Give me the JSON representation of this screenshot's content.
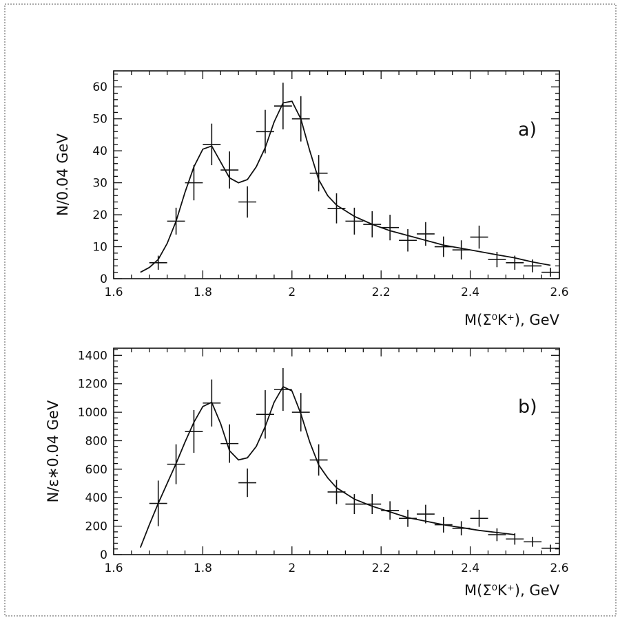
{
  "chart_data": [
    {
      "type": "scatter",
      "panel_label": "a)",
      "xlabel": "M(Σ⁰K⁺),  GeV",
      "ylabel": "N/0.04 GeV",
      "xlim": [
        1.6,
        2.6
      ],
      "ylim": [
        0,
        65
      ],
      "x_ticks": [
        1.6,
        1.8,
        2.0,
        2.2,
        2.4,
        2.6
      ],
      "x_tick_labels": [
        "1.6",
        "1.8",
        "2",
        "2.2",
        "2.4",
        "2.6"
      ],
      "y_ticks": [
        0,
        10,
        20,
        30,
        40,
        50,
        60
      ],
      "y_tick_labels": [
        "0",
        "10",
        "20",
        "30",
        "40",
        "50",
        "60"
      ],
      "series": [
        {
          "kind": "errorbar",
          "x": [
            1.7,
            1.74,
            1.78,
            1.82,
            1.86,
            1.9,
            1.94,
            1.98,
            2.02,
            2.06,
            2.1,
            2.14,
            2.18,
            2.22,
            2.26,
            2.3,
            2.34,
            2.38,
            2.42,
            2.46,
            2.5,
            2.54,
            2.58
          ],
          "y": [
            5,
            18,
            30,
            42,
            34,
            24,
            46,
            54,
            50,
            33,
            22,
            18,
            17,
            16,
            12,
            14,
            10,
            9,
            13,
            6,
            5,
            4,
            2
          ],
          "yerr": [
            2.2,
            4.2,
            5.5,
            6.5,
            5.8,
            4.9,
            6.8,
            7.3,
            7.1,
            5.7,
            4.7,
            4.2,
            4.1,
            4.0,
            3.5,
            3.7,
            3.2,
            3.0,
            3.6,
            2.4,
            2.2,
            2.0,
            1.4
          ],
          "xerr": 0.02
        },
        {
          "kind": "line",
          "x": [
            1.66,
            1.68,
            1.7,
            1.72,
            1.74,
            1.76,
            1.78,
            1.8,
            1.82,
            1.84,
            1.86,
            1.88,
            1.9,
            1.92,
            1.94,
            1.96,
            1.98,
            2.0,
            2.02,
            2.04,
            2.06,
            2.08,
            2.1,
            2.14,
            2.18,
            2.22,
            2.26,
            2.3,
            2.34,
            2.38,
            2.42,
            2.46,
            2.5,
            2.54,
            2.58
          ],
          "y": [
            2,
            3.5,
            6,
            11,
            18,
            27,
            35,
            40.5,
            41.5,
            36.5,
            31.5,
            30,
            31,
            35,
            41,
            49,
            55,
            55.5,
            50,
            40,
            31,
            26,
            23,
            19.5,
            17,
            15,
            13.5,
            12,
            10.5,
            9.5,
            8.5,
            7.5,
            6.5,
            5.2,
            4.2
          ]
        }
      ]
    },
    {
      "type": "scatter",
      "panel_label": "b)",
      "xlabel": "M(Σ⁰K⁺),  GeV",
      "ylabel": "N/ε∗0.04 GeV",
      "xlim": [
        1.6,
        2.6
      ],
      "ylim": [
        0,
        1450
      ],
      "x_ticks": [
        1.6,
        1.8,
        2.0,
        2.2,
        2.4,
        2.6
      ],
      "x_tick_labels": [
        "1.6",
        "1.8",
        "2",
        "2.2",
        "2.4",
        "2.6"
      ],
      "y_ticks": [
        0,
        200,
        400,
        600,
        800,
        1000,
        1200,
        1400
      ],
      "y_tick_labels": [
        "0",
        "200",
        "400",
        "600",
        "800",
        "1000",
        "1200",
        "1400"
      ],
      "series": [
        {
          "kind": "errorbar",
          "x": [
            1.7,
            1.74,
            1.78,
            1.82,
            1.86,
            1.9,
            1.94,
            1.98,
            2.02,
            2.06,
            2.1,
            2.14,
            2.18,
            2.22,
            2.26,
            2.3,
            2.34,
            2.38,
            2.42,
            2.46,
            2.5,
            2.54,
            2.58
          ],
          "y": [
            360,
            635,
            865,
            1065,
            780,
            505,
            985,
            1160,
            1000,
            665,
            440,
            355,
            355,
            310,
            255,
            285,
            210,
            185,
            255,
            140,
            110,
            90,
            45
          ],
          "yerr": [
            160,
            140,
            150,
            165,
            135,
            100,
            170,
            150,
            135,
            110,
            85,
            70,
            70,
            65,
            60,
            65,
            55,
            50,
            60,
            45,
            40,
            35,
            25
          ],
          "xerr": 0.02
        },
        {
          "kind": "line",
          "x": [
            1.66,
            1.68,
            1.7,
            1.72,
            1.74,
            1.76,
            1.78,
            1.8,
            1.82,
            1.84,
            1.86,
            1.88,
            1.9,
            1.92,
            1.94,
            1.96,
            1.98,
            2.0,
            2.02,
            2.04,
            2.06,
            2.08,
            2.1,
            2.14,
            2.18,
            2.22,
            2.26,
            2.3,
            2.34,
            2.38,
            2.42,
            2.46,
            2.5
          ],
          "y": [
            50,
            210,
            360,
            500,
            640,
            790,
            930,
            1040,
            1070,
            920,
            730,
            665,
            680,
            760,
            900,
            1070,
            1180,
            1150,
            990,
            790,
            630,
            540,
            470,
            390,
            340,
            300,
            260,
            235,
            210,
            190,
            170,
            155,
            140
          ]
        }
      ]
    }
  ]
}
